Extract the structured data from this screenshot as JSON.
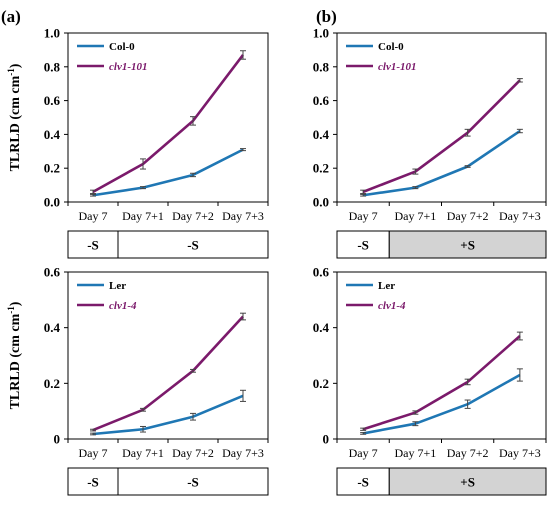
{
  "panel_labels": [
    "(a)",
    "(b)"
  ],
  "colors": {
    "control": "#1f77b4",
    "mutant": "#7b1a6b",
    "treatment_fill": "#d3d3d3",
    "axis": "#000000"
  },
  "chart_data": [
    {
      "type": "line",
      "panel": "(a)",
      "categories": [
        "Day 7",
        "Day 7+1",
        "Day 7+2",
        "Day 7+3"
      ],
      "ylabel": "TLRLD (cm cm⁻¹)",
      "ylim": [
        0,
        1.0
      ],
      "yticks": [
        "0.0",
        "0.2",
        "0.4",
        "0.6",
        "0.8",
        "1.0"
      ],
      "legend_position": "top-left",
      "series": [
        {
          "name": "Col-0",
          "italic": false,
          "color": "#1f77b4",
          "values": [
            0.04,
            0.085,
            0.16,
            0.31
          ],
          "errors": [
            0.005,
            0.006,
            0.01,
            0.006
          ]
        },
        {
          "name": "clv1-101",
          "italic": true,
          "color": "#7b1a6b",
          "values": [
            0.06,
            0.225,
            0.48,
            0.87
          ],
          "errors": [
            0.01,
            0.03,
            0.025,
            0.025
          ]
        }
      ],
      "treatments": [
        {
          "label": "-S",
          "shaded": false,
          "span": [
            0,
            1
          ]
        },
        {
          "label": "-S",
          "shaded": false,
          "span": [
            1,
            4
          ]
        }
      ]
    },
    {
      "type": "line",
      "panel": "(b)",
      "categories": [
        "Day 7",
        "Day 7+1",
        "Day 7+2",
        "Day 7+3"
      ],
      "ylabel": "",
      "ylim": [
        0,
        1.0
      ],
      "yticks": [
        "0.0",
        "0.2",
        "0.4",
        "0.6",
        "0.8",
        "1.0"
      ],
      "legend_position": "top-left",
      "series": [
        {
          "name": "Col-0",
          "italic": false,
          "color": "#1f77b4",
          "values": [
            0.04,
            0.085,
            0.21,
            0.42
          ],
          "errors": [
            0.005,
            0.006,
            0.005,
            0.01
          ]
        },
        {
          "name": "clv1-101",
          "italic": true,
          "color": "#7b1a6b",
          "values": [
            0.06,
            0.18,
            0.41,
            0.72
          ],
          "errors": [
            0.01,
            0.015,
            0.02,
            0.01
          ]
        }
      ],
      "treatments": [
        {
          "label": "-S",
          "shaded": false,
          "span": [
            0,
            1
          ]
        },
        {
          "label": "+S",
          "shaded": true,
          "span": [
            1,
            4
          ]
        }
      ]
    },
    {
      "type": "line",
      "panel": "(a)",
      "categories": [
        "Day 7",
        "Day 7+1",
        "Day 7+2",
        "Day 7+3"
      ],
      "ylabel": "TLRLD (cm cm⁻¹)",
      "ylim": [
        0,
        0.6
      ],
      "yticks": [
        "0",
        "0.2",
        "0.4",
        "0.6"
      ],
      "legend_position": "top-left",
      "series": [
        {
          "name": "Ler",
          "italic": false,
          "color": "#1f77b4",
          "values": [
            0.018,
            0.035,
            0.08,
            0.155
          ],
          "errors": [
            0.003,
            0.01,
            0.012,
            0.02
          ]
        },
        {
          "name": "clv1-4",
          "italic": true,
          "color": "#7b1a6b",
          "values": [
            0.032,
            0.105,
            0.245,
            0.44
          ],
          "errors": [
            0.003,
            0.005,
            0.005,
            0.012
          ]
        }
      ],
      "treatments": [
        {
          "label": "-S",
          "shaded": false,
          "span": [
            0,
            1
          ]
        },
        {
          "label": "-S",
          "shaded": false,
          "span": [
            1,
            4
          ]
        }
      ]
    },
    {
      "type": "line",
      "panel": "(b)",
      "categories": [
        "Day 7",
        "Day 7+1",
        "Day 7+2",
        "Day 7+3"
      ],
      "ylabel": "",
      "ylim": [
        0,
        0.6
      ],
      "yticks": [
        "0",
        "0.2",
        "0.4",
        "0.6"
      ],
      "legend_position": "top-left",
      "series": [
        {
          "name": "Ler",
          "italic": false,
          "color": "#1f77b4",
          "values": [
            0.02,
            0.055,
            0.125,
            0.23
          ],
          "errors": [
            0.003,
            0.007,
            0.015,
            0.022
          ]
        },
        {
          "name": "clv1-4",
          "italic": true,
          "color": "#7b1a6b",
          "values": [
            0.035,
            0.095,
            0.205,
            0.37
          ],
          "errors": [
            0.004,
            0.006,
            0.01,
            0.014
          ]
        }
      ],
      "treatments": [
        {
          "label": "-S",
          "shaded": false,
          "span": [
            0,
            1
          ]
        },
        {
          "label": "+S",
          "shaded": true,
          "span": [
            1,
            4
          ]
        }
      ]
    }
  ]
}
